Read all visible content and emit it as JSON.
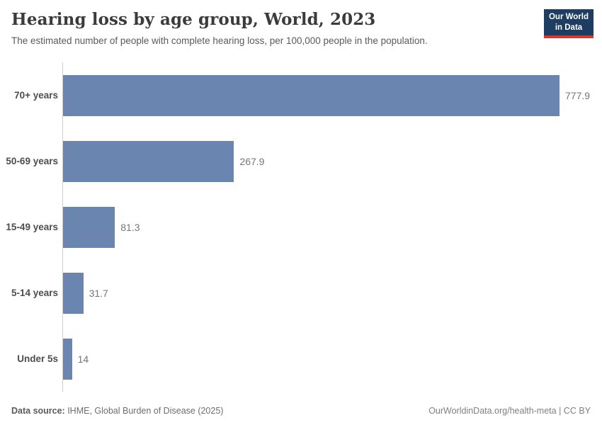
{
  "header": {
    "title": "Hearing loss by age group, World, 2023",
    "subtitle": "The estimated number of people with complete hearing loss, per 100,000 people in the population.",
    "logo": {
      "line1": "Our World",
      "line2": "in Data",
      "bg_color": "#1d3d63",
      "accent_color": "#d7382e"
    }
  },
  "chart_data": {
    "type": "bar",
    "orientation": "horizontal",
    "title": "Hearing loss by age group, World, 2023",
    "xlabel": "",
    "ylabel": "",
    "categories": [
      "70+ years",
      "50-69 years",
      "15-49 years",
      "5-14 years",
      "Under 5s"
    ],
    "values": [
      777.9,
      267.9,
      81.3,
      31.7,
      14
    ],
    "value_labels": [
      "777.9",
      "267.9",
      "81.3",
      "31.7",
      "14"
    ],
    "xlim": [
      0,
      777.9
    ],
    "grid": false,
    "legend": "none",
    "bar_color": "#6b85b1",
    "axis_color": "#cfcfcf"
  },
  "footer": {
    "source_label": "Data source:",
    "source_text": " IHME, Global Burden of Disease (2025)",
    "right_text": "OurWorldinData.org/health-meta | CC BY"
  }
}
